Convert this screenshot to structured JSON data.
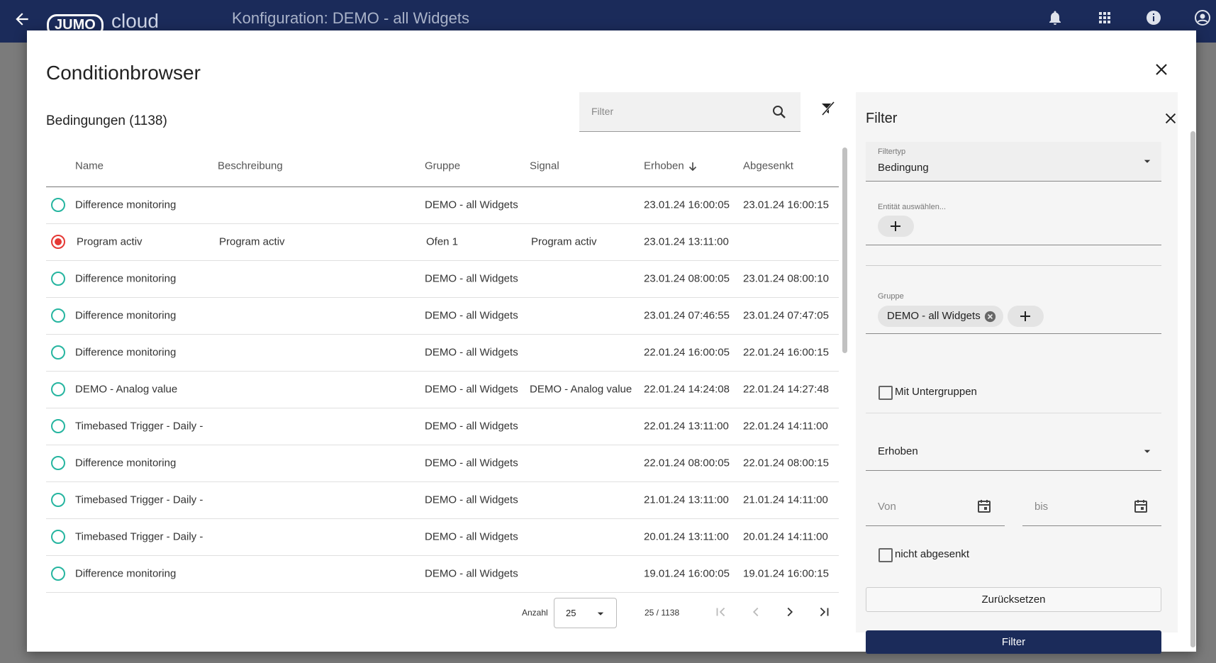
{
  "header": {
    "logo": "JUMO",
    "logo_suffix": "cloud",
    "title": "Konfiguration: DEMO - all Widgets"
  },
  "dialog": {
    "title": "Conditionbrowser",
    "subtitle": "Bedingungen (1138)",
    "search_placeholder": "Filter"
  },
  "table": {
    "columns": [
      "Name",
      "Beschreibung",
      "Gruppe",
      "Signal",
      "Erhoben",
      "Abgesenkt"
    ],
    "sort_column_index": 4,
    "rows": [
      {
        "active": false,
        "name": "Difference monitoring",
        "group": "DEMO - all Widgets",
        "raised": "23.01.24 16:00:05",
        "lowered": "23.01.24 16:00:15"
      },
      {
        "active": true,
        "name": "Program activ",
        "description": "Program activ",
        "group": "Ofen 1",
        "signal": "Program activ",
        "raised": "23.01.24 13:11:00"
      },
      {
        "active": false,
        "name": "Difference monitoring",
        "group": "DEMO - all Widgets",
        "raised": "23.01.24 08:00:05",
        "lowered": "23.01.24 08:00:10"
      },
      {
        "active": false,
        "name": "Difference monitoring",
        "group": "DEMO - all Widgets",
        "raised": "23.01.24 07:46:55",
        "lowered": "23.01.24 07:47:05"
      },
      {
        "active": false,
        "name": "Difference monitoring",
        "group": "DEMO - all Widgets",
        "raised": "22.01.24 16:00:05",
        "lowered": "22.01.24 16:00:15"
      },
      {
        "active": false,
        "name": "DEMO - Analog value",
        "group": "DEMO - all Widgets",
        "signal": "DEMO - Analog value",
        "raised": "22.01.24 14:24:08",
        "lowered": "22.01.24 14:27:48"
      },
      {
        "active": false,
        "name": "Timebased Trigger - Daily -",
        "group": "DEMO - all Widgets",
        "raised": "22.01.24 13:11:00",
        "lowered": "22.01.24 14:11:00"
      },
      {
        "active": false,
        "name": "Difference monitoring",
        "group": "DEMO - all Widgets",
        "raised": "22.01.24 08:00:05",
        "lowered": "22.01.24 08:00:15"
      },
      {
        "active": false,
        "name": "Timebased Trigger - Daily -",
        "group": "DEMO - all Widgets",
        "raised": "21.01.24 13:11:00",
        "lowered": "21.01.24 14:11:00"
      },
      {
        "active": false,
        "name": "Timebased Trigger - Daily -",
        "group": "DEMO - all Widgets",
        "raised": "20.01.24 13:11:00",
        "lowered": "20.01.24 14:11:00"
      },
      {
        "active": false,
        "name": "Difference monitoring",
        "group": "DEMO - all Widgets",
        "raised": "19.01.24 16:00:05",
        "lowered": "19.01.24 16:00:15"
      }
    ]
  },
  "pagination": {
    "label": "Anzahl",
    "page_size": "25",
    "range": "25 / 1138"
  },
  "filter": {
    "title": "Filter",
    "filter_type_label": "Filtertyp",
    "filter_type_value": "Bedingung",
    "entity_label": "Entität auswählen...",
    "group_label": "Gruppe",
    "group_chip": "DEMO - all Widgets",
    "subgroups_label": "Mit Untergruppen",
    "date_field": "Erhoben",
    "from_placeholder": "Von",
    "to_placeholder": "bis",
    "not_lowered_label": "nicht abgesenkt",
    "reset_button": "Zurücksetzen",
    "apply_button": "Filter"
  }
}
